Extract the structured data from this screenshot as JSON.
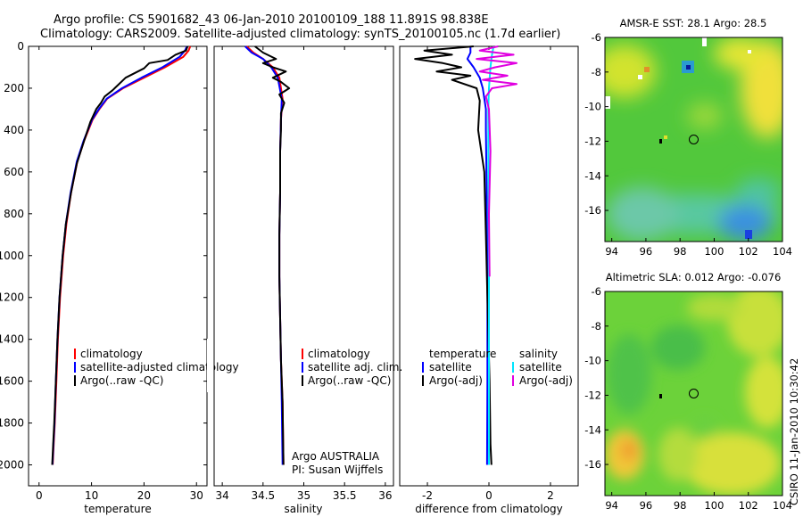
{
  "figure": {
    "title_line1": "Argo profile: CS 5901682_43 06-Jan-2010 20100109_188 11.891S 98.838E",
    "title_line2": "Climatology: CARS2009. Satellite-adjusted climatology: synTS_20100105.nc (1.7d earlier)",
    "credit": "CSIRO 11-Jan-2010 10:30:42"
  },
  "chart_data": [
    {
      "id": "temperature",
      "type": "line",
      "xlabel": "temperature",
      "ylabel": "",
      "xlim": [
        -2,
        32
      ],
      "ylim": [
        2100,
        0
      ],
      "xticks": [
        0,
        10,
        20,
        30
      ],
      "yticks": [
        0,
        200,
        400,
        600,
        800,
        1000,
        1200,
        1400,
        1600,
        1800,
        2000
      ],
      "legend": [
        "climatology",
        "satellite-adjusted climatology",
        "Argo(..raw -QC)"
      ],
      "legend_placement": "lower-right",
      "series": [
        {
          "name": "climatology",
          "color": "#ff0000",
          "x": [
            28.8,
            28.5,
            27.5,
            24,
            20,
            16,
            13,
            11.5,
            10.2,
            8.6,
            7.3,
            6.1,
            5.2,
            4.6,
            4.0,
            3.6,
            3.3,
            3.0,
            2.8,
            2.6
          ],
          "y": [
            0,
            20,
            50,
            100,
            150,
            200,
            250,
            300,
            350,
            450,
            550,
            700,
            850,
            1000,
            1200,
            1400,
            1600,
            1800,
            1900,
            2000
          ]
        },
        {
          "name": "satellite-adjusted climatology",
          "color": "#0000ff",
          "x": [
            28.2,
            27.8,
            26.8,
            23.5,
            19.5,
            15.8,
            12.9,
            11.4,
            10.1,
            8.5,
            7.2,
            6.0,
            5.1,
            4.5,
            3.9,
            3.5,
            3.2,
            2.95,
            2.75,
            2.55
          ],
          "y": [
            0,
            20,
            50,
            100,
            150,
            200,
            250,
            300,
            350,
            450,
            550,
            700,
            850,
            1000,
            1200,
            1400,
            1600,
            1800,
            1900,
            2000
          ]
        },
        {
          "name": "Argo(..raw -QC)",
          "color": "#000000",
          "x": [
            28.3,
            28,
            26,
            24.5,
            21,
            20,
            16.5,
            14,
            12.5,
            11.8,
            10.9,
            9.8,
            8.6,
            7.2,
            6.1,
            5.1,
            4.5,
            3.9,
            3.5,
            3.2,
            2.9,
            2.7,
            2.5
          ],
          "y": [
            0,
            20,
            40,
            65,
            80,
            105,
            150,
            210,
            240,
            270,
            300,
            360,
            450,
            560,
            700,
            850,
            1000,
            1200,
            1400,
            1600,
            1800,
            1900,
            2000
          ]
        }
      ]
    },
    {
      "id": "salinity",
      "type": "line",
      "xlabel": "salinity",
      "ylabel": "",
      "xlim": [
        33.9,
        36.1
      ],
      "ylim": [
        2100,
        0
      ],
      "xticks": [
        34,
        34.5,
        35,
        35.5,
        36
      ],
      "legend": [
        "climatology",
        "satellite adj. clim.",
        "Argo(..raw -QC)"
      ],
      "legend_placement": "lower-right",
      "annotations": [
        "Argo AUSTRALIA",
        "PI: Susan Wijffels"
      ],
      "series": [
        {
          "name": "climatology",
          "color": "#ff0000",
          "x": [
            34.3,
            34.38,
            34.5,
            34.62,
            34.7,
            34.74,
            34.72,
            34.71,
            34.71,
            34.7,
            34.7,
            34.71,
            34.72,
            34.74,
            34.75
          ],
          "y": [
            0,
            30,
            60,
            100,
            150,
            250,
            350,
            500,
            700,
            900,
            1100,
            1300,
            1500,
            1700,
            2000
          ]
        },
        {
          "name": "satellite adj. clim.",
          "color": "#0000ff",
          "x": [
            34.28,
            34.36,
            34.5,
            34.6,
            34.68,
            34.73,
            34.72,
            34.71,
            34.71,
            34.7,
            34.7,
            34.71,
            34.72,
            34.73,
            34.74
          ],
          "y": [
            0,
            30,
            60,
            100,
            150,
            250,
            350,
            500,
            700,
            900,
            1100,
            1300,
            1500,
            1700,
            2000
          ]
        },
        {
          "name": "Argo(..raw -QC)",
          "color": "#000000",
          "x": [
            34.4,
            34.5,
            34.66,
            34.5,
            34.62,
            34.78,
            34.62,
            34.72,
            34.82,
            34.7,
            34.76,
            34.72,
            34.72,
            34.71,
            34.71,
            34.7,
            34.7,
            34.71,
            34.72,
            34.74,
            34.75
          ],
          "y": [
            0,
            30,
            60,
            80,
            100,
            120,
            150,
            170,
            200,
            230,
            270,
            320,
            400,
            500,
            700,
            900,
            1100,
            1300,
            1500,
            1700,
            2000
          ]
        }
      ]
    },
    {
      "id": "difference",
      "type": "line",
      "xlabel": "difference from climatology",
      "ylabel": "",
      "xlim": [
        -2.9,
        2.9
      ],
      "ylim": [
        2100,
        0
      ],
      "xticks": [
        -2,
        0,
        2
      ],
      "legend_headers": [
        "temperature",
        "salinity"
      ],
      "legend": [
        "satellite",
        "Argo(-adj)",
        "satellite",
        "Argo(-adj)"
      ],
      "legend_placement": "lower-right",
      "series": [
        {
          "name": "temperature satellite",
          "color": "#0000ff",
          "x": [
            -0.6,
            -0.6,
            -0.7,
            -0.5,
            -0.3,
            -0.2,
            -0.1,
            -0.1,
            -0.08,
            -0.06,
            -0.05,
            -0.05,
            -0.06
          ],
          "y": [
            0,
            30,
            60,
            100,
            150,
            200,
            300,
            400,
            600,
            900,
            1200,
            1600,
            2000
          ]
        },
        {
          "name": "temperature Argo(-adj)",
          "color": "#000000",
          "x": [
            -0.5,
            -2.1,
            -1.2,
            -2.4,
            -1.5,
            -0.9,
            -1.7,
            -0.6,
            -1.2,
            -0.4,
            -0.3,
            -0.35,
            -0.15,
            -0.1,
            -0.05,
            0.02,
            0.05,
            0.08
          ],
          "y": [
            0,
            20,
            40,
            60,
            80,
            100,
            120,
            140,
            160,
            200,
            260,
            400,
            600,
            900,
            1200,
            1600,
            1900,
            2000
          ]
        },
        {
          "name": "salinity satellite",
          "color": "#00e5ff",
          "x": [
            0.15,
            0.1,
            0.05,
            0.0,
            -0.02,
            -0.02,
            -0.01,
            0.0,
            0.0,
            0.0,
            0.0
          ],
          "y": [
            0,
            40,
            100,
            200,
            300,
            500,
            800,
            1100,
            1400,
            1700,
            2000
          ]
        },
        {
          "name": "salinity Argo(-adj)",
          "color": "#e000e0",
          "x": [
            0.3,
            -0.3,
            0.8,
            -0.4,
            0.9,
            0.2,
            -0.3,
            0.6,
            -0.2,
            0.9,
            0.1,
            -0.1,
            0.0,
            0.05,
            0.0,
            0.02
          ],
          "y": [
            0,
            20,
            40,
            60,
            80,
            100,
            120,
            140,
            160,
            180,
            200,
            240,
            300,
            500,
            800,
            1100
          ]
        }
      ]
    },
    {
      "id": "sst_map",
      "type": "heatmap",
      "title": "AMSR-E SST: 28.1 Argo: 28.5",
      "xlim": [
        93.6,
        104
      ],
      "ylim": [
        -17.8,
        -6
      ],
      "xticks": [
        94,
        96,
        98,
        100,
        102,
        104
      ],
      "yticks": [
        -6,
        -8,
        -10,
        -12,
        -14,
        -16
      ],
      "marker": {
        "lon": 98.8,
        "lat": -11.9
      }
    },
    {
      "id": "sla_map",
      "type": "heatmap",
      "title": "Altimetric SLA: 0.012 Argo: -0.076",
      "xlim": [
        93.6,
        104
      ],
      "ylim": [
        -17.8,
        -6
      ],
      "xticks": [
        94,
        96,
        98,
        100,
        102,
        104
      ],
      "yticks": [
        -6,
        -8,
        -10,
        -12,
        -14,
        -16
      ],
      "marker": {
        "lon": 98.8,
        "lat": -11.9
      }
    }
  ]
}
